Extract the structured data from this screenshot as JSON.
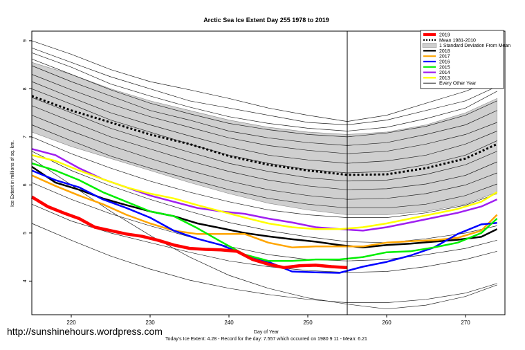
{
  "footer": {
    "url": "http://sunshinehours.wordpress.com"
  },
  "chart_data": {
    "type": "line",
    "title": "Arctic Sea Ice Extent Day 255 1978 to 2019",
    "xlabel": "Day of Year",
    "ylabel": "Ice Extent in millions of sq. km.",
    "subtitle": "Today's Ice Extent: 4.28  - Record for the day: 7.557 which occurred on 1980 9 11  - Mean: 6.21",
    "xlim": [
      215,
      275
    ],
    "ylim": [
      3.3,
      9.2
    ],
    "xticks": [
      220,
      230,
      240,
      250,
      260,
      270
    ],
    "yticks": [
      4,
      5,
      6,
      7,
      8,
      9
    ],
    "marker_day": 255,
    "legend_position": "top-right",
    "legend": [
      {
        "label": "2019",
        "color": "#ff0000",
        "style": "thick"
      },
      {
        "label": "Mean 1981-2010",
        "color": "#000000",
        "style": "dotted"
      },
      {
        "label": "1 Standard Deviation From Mean",
        "color": "#cfcfcf",
        "style": "box"
      },
      {
        "label": "2018",
        "color": "#000000",
        "style": "solid"
      },
      {
        "label": "2017",
        "color": "#ffa500",
        "style": "solid"
      },
      {
        "label": "2016",
        "color": "#0000ff",
        "style": "solid"
      },
      {
        "label": "2015",
        "color": "#00ee00",
        "style": "solid"
      },
      {
        "label": "2014",
        "color": "#a020f0",
        "style": "solid"
      },
      {
        "label": "2013",
        "color": "#ffff00",
        "style": "solid"
      },
      {
        "label": "Every Other Year",
        "color": "#000000",
        "style": "thin"
      }
    ],
    "mean": {
      "x": [
        215,
        220,
        225,
        230,
        235,
        240,
        245,
        250,
        255,
        260,
        265,
        270,
        274
      ],
      "y": [
        7.85,
        7.55,
        7.3,
        7.05,
        6.85,
        6.6,
        6.42,
        6.3,
        6.21,
        6.22,
        6.35,
        6.55,
        6.85
      ]
    },
    "sd_band": {
      "x": [
        215,
        220,
        225,
        230,
        235,
        240,
        245,
        250,
        255,
        260,
        265,
        270,
        274
      ],
      "upper": [
        8.55,
        8.3,
        8.0,
        7.75,
        7.55,
        7.35,
        7.2,
        7.1,
        7.05,
        7.1,
        7.25,
        7.5,
        7.8
      ],
      "lower": [
        7.1,
        6.8,
        6.55,
        6.3,
        6.05,
        5.82,
        5.62,
        5.48,
        5.38,
        5.38,
        5.45,
        5.6,
        5.85
      ]
    },
    "series": [
      {
        "name": "2019",
        "color": "#ff0000",
        "width": 4.5,
        "x": [
          215,
          217,
          219,
          221,
          223,
          225,
          227,
          229,
          231,
          233,
          235,
          237,
          239,
          241,
          243,
          245,
          247,
          249,
          251,
          253,
          255
        ],
        "y": [
          5.75,
          5.55,
          5.42,
          5.3,
          5.12,
          5.05,
          4.98,
          4.93,
          4.85,
          4.75,
          4.68,
          4.66,
          4.65,
          4.62,
          4.45,
          4.35,
          4.28,
          4.32,
          4.33,
          4.3,
          4.28
        ]
      },
      {
        "name": "2018",
        "color": "#000000",
        "width": 2.5,
        "x": [
          215,
          218,
          221,
          224,
          227,
          230,
          233,
          236,
          239,
          242,
          245,
          248,
          251,
          254,
          257,
          260,
          263,
          266,
          269,
          272,
          274
        ],
        "y": [
          6.38,
          6.05,
          5.9,
          5.72,
          5.58,
          5.45,
          5.35,
          5.2,
          5.1,
          5.0,
          4.93,
          4.87,
          4.82,
          4.75,
          4.7,
          4.75,
          4.78,
          4.82,
          4.86,
          4.92,
          5.08
        ]
      },
      {
        "name": "2017",
        "color": "#ffa500",
        "width": 2.5,
        "x": [
          215,
          218,
          221,
          224,
          227,
          230,
          233,
          236,
          239,
          242,
          245,
          248,
          251,
          254,
          257,
          260,
          263,
          266,
          269,
          272,
          274
        ],
        "y": [
          6.2,
          5.98,
          5.78,
          5.6,
          5.38,
          5.2,
          5.05,
          4.98,
          4.98,
          4.98,
          4.8,
          4.7,
          4.72,
          4.72,
          4.72,
          4.8,
          4.83,
          4.85,
          4.9,
          5.05,
          5.38
        ]
      },
      {
        "name": "2016",
        "color": "#0000ff",
        "width": 2.5,
        "x": [
          215,
          218,
          221,
          224,
          227,
          230,
          233,
          236,
          239,
          242,
          245,
          248,
          251,
          254,
          257,
          260,
          263,
          266,
          269,
          272,
          274
        ],
        "y": [
          6.3,
          6.1,
          5.95,
          5.7,
          5.52,
          5.32,
          5.05,
          4.88,
          4.75,
          4.55,
          4.4,
          4.2,
          4.18,
          4.17,
          4.3,
          4.4,
          4.53,
          4.7,
          4.98,
          5.18,
          5.21
        ]
      },
      {
        "name": "2015",
        "color": "#00ee00",
        "width": 2.5,
        "x": [
          215,
          218,
          221,
          224,
          227,
          230,
          233,
          236,
          239,
          242,
          245,
          248,
          251,
          254,
          257,
          260,
          263,
          266,
          269,
          272,
          274
        ],
        "y": [
          6.45,
          6.3,
          6.1,
          5.85,
          5.65,
          5.45,
          5.35,
          5.1,
          4.82,
          4.55,
          4.42,
          4.42,
          4.45,
          4.45,
          4.5,
          4.6,
          4.62,
          4.7,
          4.8,
          5.0,
          5.3
        ]
      },
      {
        "name": "2014",
        "color": "#a020f0",
        "width": 2.5,
        "x": [
          215,
          218,
          221,
          224,
          227,
          230,
          233,
          236,
          239,
          242,
          245,
          248,
          251,
          254,
          257,
          260,
          263,
          266,
          269,
          272,
          274
        ],
        "y": [
          6.75,
          6.62,
          6.35,
          6.12,
          5.95,
          5.78,
          5.65,
          5.52,
          5.45,
          5.4,
          5.3,
          5.22,
          5.12,
          5.08,
          5.05,
          5.12,
          5.22,
          5.32,
          5.42,
          5.55,
          5.7
        ]
      },
      {
        "name": "2013",
        "color": "#ffff00",
        "width": 2.5,
        "x": [
          215,
          218,
          221,
          224,
          227,
          230,
          233,
          236,
          239,
          242,
          245,
          248,
          251,
          254,
          257,
          260,
          263,
          266,
          269,
          272,
          274
        ],
        "y": [
          6.62,
          6.5,
          6.3,
          6.12,
          5.95,
          5.82,
          5.72,
          5.58,
          5.45,
          5.32,
          5.2,
          5.12,
          5.08,
          5.08,
          5.12,
          5.2,
          5.3,
          5.4,
          5.5,
          5.65,
          5.85
        ]
      }
    ],
    "other_years": {
      "x": [
        215,
        220,
        225,
        230,
        235,
        240,
        245,
        250,
        255,
        260,
        265,
        270,
        274
      ],
      "lines": [
        [
          9.0,
          8.72,
          8.4,
          8.15,
          7.98,
          7.8,
          7.6,
          7.45,
          7.32,
          7.45,
          7.7,
          7.95,
          8.2
        ],
        [
          8.85,
          8.55,
          8.25,
          8.0,
          7.75,
          7.6,
          7.45,
          7.3,
          7.25,
          7.35,
          7.55,
          7.75,
          8.05
        ],
        [
          8.75,
          8.45,
          8.1,
          7.85,
          7.62,
          7.42,
          7.28,
          7.18,
          7.12,
          7.2,
          7.38,
          7.6,
          7.95
        ],
        [
          8.62,
          8.3,
          7.98,
          7.7,
          7.48,
          7.28,
          7.15,
          7.05,
          7.0,
          7.08,
          7.22,
          7.45,
          7.75
        ],
        [
          8.48,
          8.15,
          7.85,
          7.55,
          7.35,
          7.12,
          6.98,
          6.88,
          6.82,
          6.88,
          7.05,
          7.25,
          7.55
        ],
        [
          8.3,
          7.98,
          7.68,
          7.42,
          7.2,
          6.98,
          6.82,
          6.72,
          6.65,
          6.7,
          6.85,
          7.05,
          7.3
        ],
        [
          8.15,
          7.82,
          7.5,
          7.25,
          7.02,
          6.8,
          6.62,
          6.52,
          6.45,
          6.5,
          6.62,
          6.85,
          7.12
        ],
        [
          8.0,
          7.68,
          7.35,
          7.1,
          6.85,
          6.62,
          6.45,
          6.32,
          6.25,
          6.28,
          6.42,
          6.62,
          6.92
        ],
        [
          7.82,
          7.5,
          7.18,
          6.92,
          6.68,
          6.45,
          6.28,
          6.15,
          6.08,
          6.1,
          6.22,
          6.42,
          6.7
        ],
        [
          7.65,
          7.32,
          7.0,
          6.75,
          6.5,
          6.28,
          6.1,
          5.98,
          5.9,
          5.92,
          6.02,
          6.2,
          6.48
        ],
        [
          7.45,
          7.12,
          6.82,
          6.55,
          6.3,
          6.08,
          5.9,
          5.78,
          5.7,
          5.72,
          5.82,
          6.0,
          6.25
        ],
        [
          7.25,
          6.92,
          6.6,
          6.35,
          6.12,
          5.9,
          5.72,
          5.6,
          5.52,
          5.52,
          5.6,
          5.78,
          6.02
        ],
        [
          7.0,
          6.65,
          6.35,
          6.08,
          5.85,
          5.65,
          5.48,
          5.38,
          5.32,
          5.32,
          5.42,
          5.58,
          5.82
        ],
        [
          6.7,
          6.3,
          5.98,
          5.7,
          5.45,
          5.22,
          5.05,
          4.92,
          4.82,
          4.8,
          4.88,
          5.0,
          5.15
        ],
        [
          6.05,
          5.7,
          5.4,
          5.15,
          4.92,
          4.72,
          4.55,
          4.45,
          4.42,
          4.45,
          4.55,
          4.68,
          4.85
        ],
        [
          5.6,
          5.25,
          5.0,
          4.8,
          4.6,
          4.42,
          4.3,
          4.22,
          4.18,
          4.2,
          4.3,
          4.45,
          4.62
        ],
        [
          5.2,
          4.85,
          4.52,
          4.25,
          4.02,
          3.85,
          3.72,
          3.62,
          3.55,
          3.55,
          3.62,
          3.75,
          3.95
        ],
        [
          6.55,
          6.0,
          5.45,
          4.95,
          4.5,
          4.12,
          3.85,
          3.65,
          3.52,
          3.42,
          3.5,
          3.68,
          3.92
        ]
      ]
    }
  }
}
